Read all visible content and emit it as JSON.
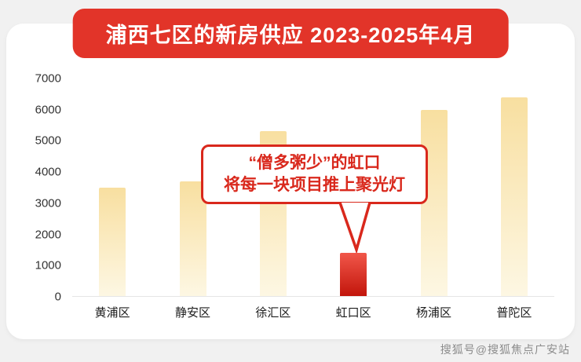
{
  "banner": {
    "title": "浦西七区的新房供应 2023-2025年4月"
  },
  "chart_data": {
    "type": "bar",
    "title": "浦西七区的新房供应 2023-2025年4月",
    "categories": [
      "黄浦区",
      "静安区",
      "徐汇区",
      "虹口区",
      "杨浦区",
      "普陀区"
    ],
    "values": [
      3500,
      3700,
      5300,
      1400,
      6000,
      6400
    ],
    "highlight_index": 3,
    "highlight_category": "虹口区",
    "ylim": [
      0,
      7000
    ],
    "yticks": [
      0,
      1000,
      2000,
      3000,
      4000,
      5000,
      6000,
      7000
    ],
    "grid": false,
    "legend": "none",
    "bar_color_top": "#f8dfa0",
    "bar_color_bottom": "#fdf7e3",
    "highlight_color_top": "#f1574a",
    "highlight_color_bottom": "#c2150b",
    "annotation": {
      "lines": [
        "“僧多粥少”的虹口",
        "将每一块项目推上聚光灯"
      ],
      "target_category": "虹口区"
    }
  },
  "watermark": {
    "text": "搜狐号@搜狐焦点广安站"
  },
  "colors": {
    "page_bg": "#f1f1f1",
    "card_bg": "#ffffff",
    "banner_red": "#e23429",
    "annotation_red": "#d9281c"
  }
}
